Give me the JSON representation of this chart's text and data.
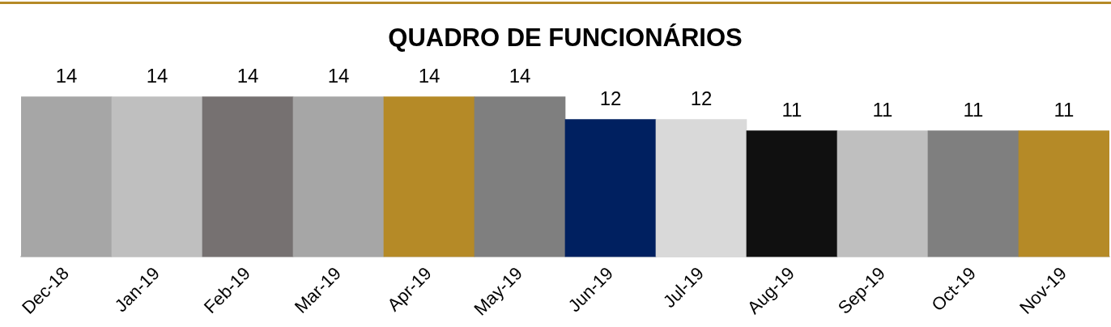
{
  "chart_data": {
    "type": "bar",
    "title": "QUADRO DE FUNCIONÁRIOS",
    "categories": [
      "Dec-18",
      "Jan-19",
      "Feb-19",
      "Mar-19",
      "Apr-19",
      "May-19",
      "Jun-19",
      "Jul-19",
      "Aug-19",
      "Sep-19",
      "Oct-19",
      "Nov-19"
    ],
    "values": [
      14,
      14,
      14,
      14,
      14,
      14,
      12,
      12,
      11,
      11,
      11,
      11
    ],
    "colors": [
      "#a6a6a6",
      "#bfbfbf",
      "#767171",
      "#a6a6a6",
      "#b58a27",
      "#7f7f7f",
      "#002060",
      "#d9d9d9",
      "#101010",
      "#bfbfbf",
      "#7f7f7f",
      "#b58a27"
    ],
    "data_labels": true,
    "tick_labels": "x",
    "grid": false,
    "legend": false
  }
}
